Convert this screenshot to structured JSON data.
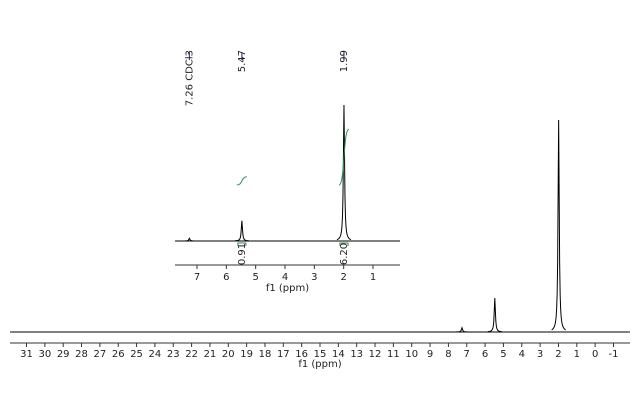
{
  "chart_data": [
    {
      "type": "nmr",
      "color": "#000000",
      "x": [
        7.26,
        5.47,
        1.99
      ],
      "values": [
        2,
        16,
        100
      ],
      "xlim": [
        31.9,
        -1.9
      ],
      "xticks": [
        31,
        30,
        29,
        28,
        27,
        26,
        25,
        24,
        23,
        22,
        21,
        20,
        19,
        18,
        17,
        16,
        15,
        14,
        13,
        12,
        11,
        10,
        9,
        8,
        7,
        6,
        5,
        4,
        3,
        2,
        1,
        0,
        -1
      ],
      "xlabel": "f1 (ppm)"
    },
    {
      "type": "nmr",
      "color": "#000000",
      "x": [
        7.26,
        5.47,
        1.99
      ],
      "values": [
        2,
        15,
        100
      ],
      "xlim": [
        7.75,
        0.08
      ],
      "xticks": [
        7,
        6,
        5,
        4,
        3,
        2,
        1
      ],
      "xlabel": "f1 (ppm)",
      "peak_labels": [
        {
          "value": 7.26,
          "label": "7.26 CDCl3"
        },
        5.47,
        1.99
      ],
      "peak_label_color": "#1f2a6b",
      "integrals": {
        "x": [
          5.47,
          1.99
        ],
        "values": [
          0.91,
          6.2
        ],
        "value_labels": [
          "0.91",
          "6.20"
        ],
        "color": "#2e8b57"
      }
    }
  ]
}
